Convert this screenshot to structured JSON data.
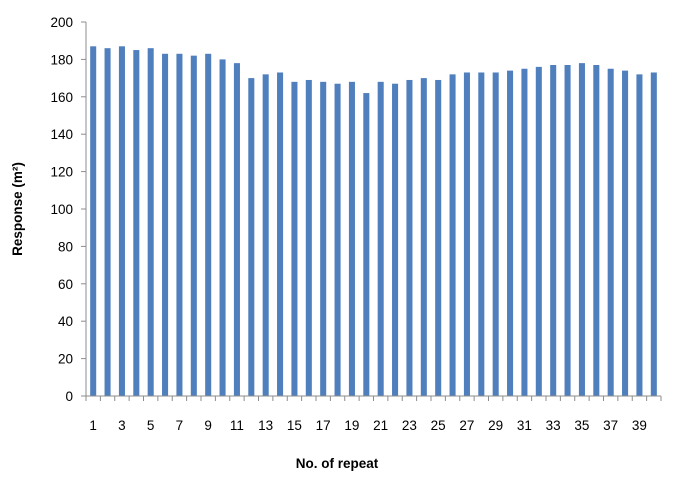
{
  "chart_data": {
    "type": "bar",
    "title": "",
    "xlabel": "No. of repeat",
    "ylabel": "Response (m²)",
    "x": [
      1,
      2,
      3,
      4,
      5,
      6,
      7,
      8,
      9,
      10,
      11,
      12,
      13,
      14,
      15,
      16,
      17,
      18,
      19,
      20,
      21,
      22,
      23,
      24,
      25,
      26,
      27,
      28,
      29,
      30,
      31,
      32,
      33,
      34,
      35,
      36,
      37,
      38,
      39,
      40
    ],
    "x_tick_labels": [
      "1",
      "3",
      "5",
      "7",
      "9",
      "11",
      "13",
      "15",
      "17",
      "19",
      "21",
      "23",
      "25",
      "27",
      "29",
      "31",
      "33",
      "35",
      "37",
      "39"
    ],
    "values": [
      187,
      186,
      187,
      185,
      186,
      183,
      183,
      182,
      183,
      180,
      178,
      170,
      172,
      173,
      168,
      169,
      168,
      167,
      168,
      162,
      168,
      167,
      169,
      170,
      169,
      172,
      173,
      173,
      173,
      174,
      175,
      176,
      177,
      177,
      178,
      177,
      175,
      174,
      172,
      173
    ],
    "ylim": [
      0,
      200
    ],
    "y_tick_labels": [
      "0",
      "20",
      "40",
      "60",
      "80",
      "100",
      "120",
      "140",
      "160",
      "180",
      "200"
    ],
    "grid": false,
    "legend": "none",
    "bar_color": "#4f7fbc",
    "axis_color": "#8c8c8c"
  }
}
